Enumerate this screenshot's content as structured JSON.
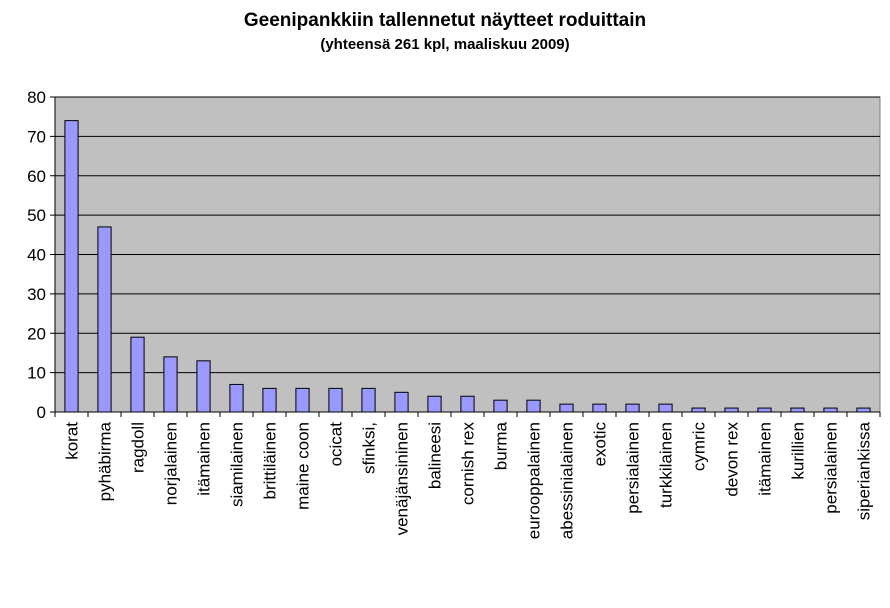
{
  "chart_data": {
    "type": "bar",
    "title": "Geenipankkiin tallennetut näytteet roduittain",
    "subtitle": "(yhteensä 261 kpl, maaliskuu 2009)",
    "xlabel": "",
    "ylabel": "",
    "ylim": [
      0,
      80
    ],
    "yticks": [
      0,
      10,
      20,
      30,
      40,
      50,
      60,
      70,
      80
    ],
    "grid": true,
    "legend": "none",
    "colors": {
      "plot_bg": "#c0c0c0",
      "bar_fill": "#9999ff",
      "bar_stroke": "#000000",
      "grid": "#000000"
    },
    "categories": [
      "korat",
      "pyhäbirma",
      "ragdoll",
      "norjalainen",
      "itämainen",
      "siamilainen",
      "brittiläinen",
      "maine coon",
      "ocicat",
      "sfinksi,",
      "venäjänsininen",
      "balineesi",
      "cornish rex",
      "burma",
      "eurooppalainen",
      "abessinialainen",
      "exotic",
      "persialainen",
      "turkkilainen",
      "cymric",
      "devon rex",
      "itämainen",
      "kurillien",
      "persialainen",
      "siperiankissa"
    ],
    "values": [
      74,
      47,
      19,
      14,
      13,
      7,
      6,
      6,
      6,
      6,
      5,
      4,
      4,
      3,
      3,
      2,
      2,
      2,
      2,
      1,
      1,
      1,
      1,
      1,
      1
    ]
  }
}
